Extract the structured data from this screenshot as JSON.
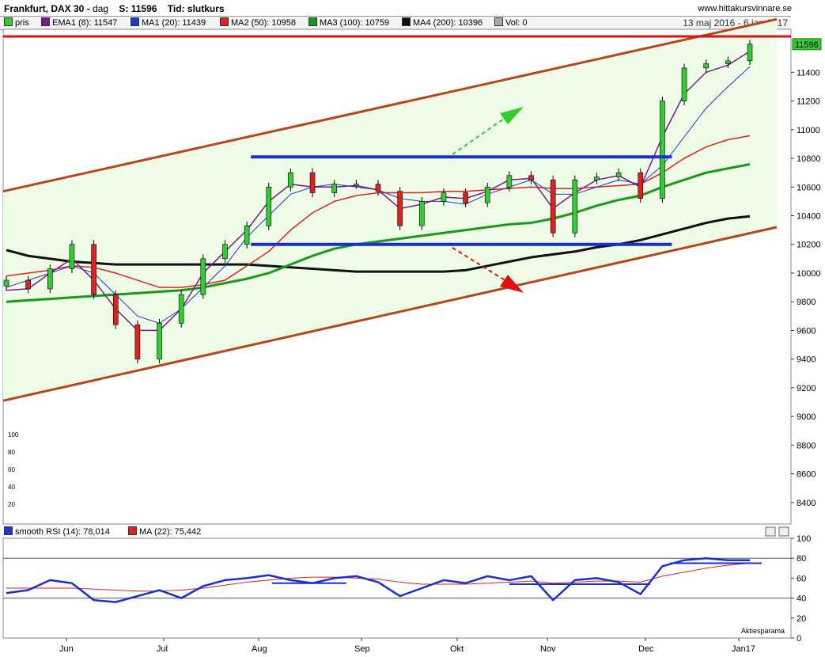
{
  "header": {
    "title": "Frankfurt, DAX 30 -",
    "interval": "dag",
    "close_label": "S: 11596",
    "time_label": "Tid: slutkurs",
    "site": "www.hittakursvinnare.se",
    "date_range": "13 maj 2016 - 6 jan 2017"
  },
  "legend": [
    {
      "label": "pris",
      "color": "#33cc33"
    },
    {
      "label": "EMA1 (8): 11547",
      "color": "#7a1a8a"
    },
    {
      "label": "MA1 (20): 11439",
      "color": "#1a3acc"
    },
    {
      "label": "MA2 (50): 10958",
      "color": "#dd2222"
    },
    {
      "label": "MA3 (100): 10759",
      "color": "#1a9a1a"
    },
    {
      "label": "MA4 (200): 10396",
      "color": "#111111"
    },
    {
      "label": "Vol: 0",
      "color": "#aaaaaa"
    }
  ],
  "rsi_legend": [
    {
      "label": "smooth RSI (14): 78,014",
      "color": "#1a3acc"
    },
    {
      "label": "MA (22): 75,442",
      "color": "#dd2222"
    }
  ],
  "price_label": "11596",
  "watermark": "Aktiesparama",
  "chart_data": {
    "type": "candlestick",
    "title": "Frankfurt, DAX 30",
    "y_axis_ticks": [
      "11400",
      "11200",
      "11000",
      "10800",
      "10600",
      "10400",
      "10200",
      "10000",
      "9800",
      "9600",
      "9400",
      "9200",
      "9000",
      "8800",
      "8600",
      "8400"
    ],
    "y_range": [
      8250,
      11700
    ],
    "volume_axis_ticks": [
      "100",
      "80",
      "60",
      "40",
      "20"
    ],
    "x_axis_labels": [
      "Jun",
      "Jul",
      "Aug",
      "Sep",
      "Okt",
      "Nov",
      "Dec",
      "Jan17"
    ],
    "rsi_axis_ticks": [
      "100",
      "80",
      "60",
      "40",
      "20",
      "0"
    ],
    "rsi_range": [
      0,
      100
    ],
    "rsi_levels": [
      80,
      40
    ],
    "x": [
      "05-13",
      "05-20",
      "05-27",
      "06-03",
      "06-10",
      "06-17",
      "06-24",
      "07-01",
      "07-08",
      "07-15",
      "07-22",
      "07-29",
      "08-05",
      "08-12",
      "08-19",
      "08-26",
      "09-02",
      "09-09",
      "09-16",
      "09-23",
      "09-30",
      "10-07",
      "10-14",
      "10-21",
      "10-28",
      "11-04",
      "11-11",
      "11-18",
      "11-25",
      "12-02",
      "12-09",
      "12-16",
      "12-23",
      "12-30",
      "01-06"
    ],
    "close": [
      9950,
      9890,
      10030,
      10200,
      9850,
      9640,
      9400,
      9650,
      9850,
      10100,
      10200,
      10330,
      10600,
      10700,
      10560,
      10620,
      10620,
      10570,
      10330,
      10500,
      10560,
      10490,
      10600,
      10680,
      10650,
      10280,
      10650,
      10670,
      10700,
      10520,
      11200,
      11430,
      11460,
      11480,
      11596
    ],
    "ema8": [
      9880,
      9890,
      10000,
      10100,
      9950,
      9750,
      9600,
      9600,
      9750,
      10000,
      10150,
      10300,
      10500,
      10620,
      10600,
      10600,
      10610,
      10580,
      10450,
      10480,
      10530,
      10520,
      10570,
      10650,
      10660,
      10450,
      10560,
      10650,
      10680,
      10600,
      10950,
      11250,
      11400,
      11450,
      11547
    ],
    "ma20": [
      9900,
      9950,
      10000,
      10050,
      10000,
      9850,
      9700,
      9650,
      9750,
      9900,
      10050,
      10250,
      10400,
      10550,
      10600,
      10620,
      10600,
      10580,
      10520,
      10500,
      10500,
      10480,
      10550,
      10600,
      10650,
      10550,
      10550,
      10600,
      10650,
      10620,
      10750,
      10950,
      11150,
      11300,
      11439
    ],
    "ma50": [
      9980,
      10000,
      10020,
      10050,
      10040,
      10000,
      9950,
      9900,
      9900,
      9920,
      9950,
      10050,
      10150,
      10300,
      10420,
      10500,
      10540,
      10560,
      10560,
      10560,
      10570,
      10570,
      10580,
      10590,
      10600,
      10590,
      10590,
      10600,
      10610,
      10620,
      10700,
      10800,
      10880,
      10930,
      10958
    ],
    "ma100": [
      9800,
      9810,
      9820,
      9830,
      9840,
      9850,
      9860,
      9870,
      9880,
      9900,
      9930,
      9960,
      10000,
      10060,
      10120,
      10170,
      10200,
      10220,
      10240,
      10260,
      10280,
      10300,
      10320,
      10340,
      10350,
      10380,
      10420,
      10470,
      10510,
      10540,
      10600,
      10650,
      10700,
      10730,
      10759
    ],
    "ma200": [
      10160,
      10120,
      10100,
      10080,
      10070,
      10060,
      10060,
      10060,
      10060,
      10060,
      10060,
      10060,
      10050,
      10040,
      10030,
      10020,
      10010,
      10010,
      10010,
      10010,
      10010,
      10020,
      10050,
      10080,
      10110,
      10130,
      10150,
      10180,
      10200,
      10230,
      10270,
      10310,
      10350,
      10380,
      10396
    ],
    "rsi": [
      45,
      48,
      58,
      55,
      38,
      36,
      42,
      48,
      40,
      52,
      58,
      60,
      63,
      58,
      55,
      60,
      62,
      56,
      42,
      50,
      58,
      55,
      62,
      58,
      62,
      38,
      58,
      60,
      56,
      44,
      72,
      78,
      80,
      78,
      78
    ],
    "rsi_ma": [
      50,
      50,
      50,
      50,
      49,
      48,
      47,
      47,
      48,
      50,
      53,
      56,
      58,
      60,
      61,
      61,
      60,
      59,
      56,
      54,
      54,
      54,
      55,
      56,
      57,
      55,
      56,
      57,
      57,
      56,
      62,
      66,
      70,
      73,
      75
    ],
    "channel_upper": [
      10570,
      11770
    ],
    "channel_lower": [
      9110,
      10320
    ],
    "range_top": 10810,
    "range_bottom": 10200,
    "resistance": 11650
  }
}
